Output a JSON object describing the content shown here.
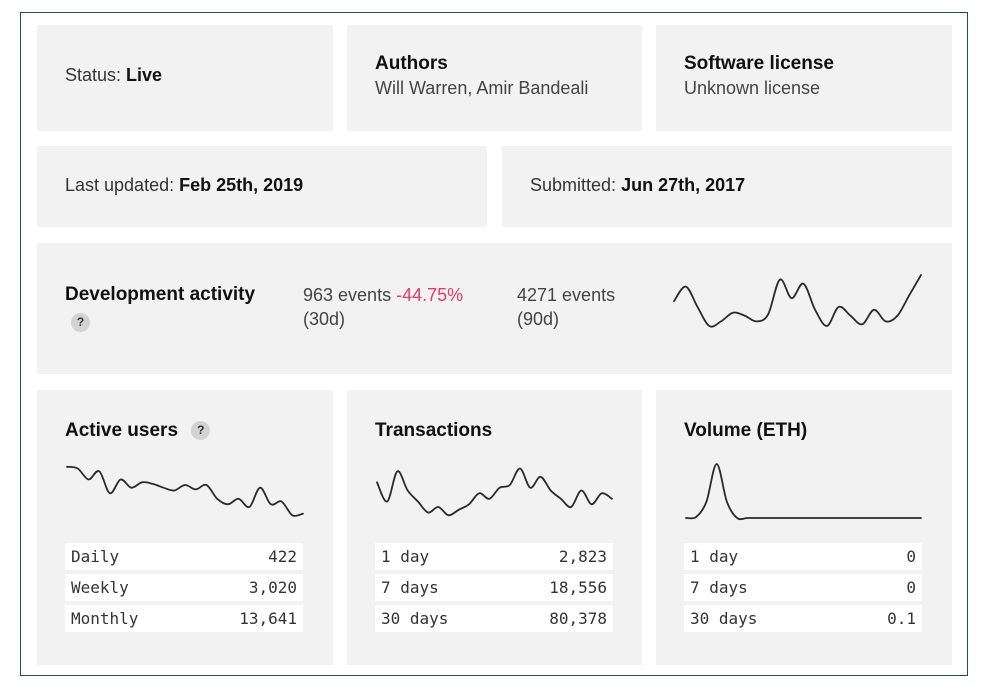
{
  "status": {
    "label": "Status:",
    "value": "Live"
  },
  "authors": {
    "title": "Authors",
    "value": "Will Warren, Amir Bandeali"
  },
  "license": {
    "title": "Software license",
    "value": "Unknown license"
  },
  "last_updated": {
    "label": "Last updated:",
    "value": "Feb 25th, 2019"
  },
  "submitted": {
    "label": "Submitted:",
    "value": "Jun 27th, 2017"
  },
  "dev_activity": {
    "title": "Development activity",
    "help_icon": "?",
    "events_30d": "963 events",
    "change_30d": "-44.75%",
    "period_30d": "(30d)",
    "events_90d": "4271 events",
    "period_90d": "(90d)",
    "sparkline": [
      0.55,
      0.8,
      0.45,
      0.12,
      0.2,
      0.35,
      0.3,
      0.2,
      0.32,
      0.92,
      0.6,
      0.85,
      0.4,
      0.12,
      0.45,
      0.3,
      0.15,
      0.4,
      0.2,
      0.3,
      0.65,
      1.0
    ]
  },
  "active_users": {
    "title": "Active users",
    "help_icon": "?",
    "sparkline": [
      0.93,
      0.9,
      0.7,
      0.85,
      0.45,
      0.7,
      0.55,
      0.65,
      0.62,
      0.55,
      0.5,
      0.6,
      0.52,
      0.6,
      0.35,
      0.25,
      0.35,
      0.2,
      0.55,
      0.25,
      0.3,
      0.05,
      0.08
    ],
    "rows": [
      {
        "label": "Daily",
        "value": "422"
      },
      {
        "label": "Weekly",
        "value": "3,020"
      },
      {
        "label": "Monthly",
        "value": "13,641"
      }
    ]
  },
  "transactions": {
    "title": "Transactions",
    "sparkline": [
      0.65,
      0.3,
      0.85,
      0.5,
      0.3,
      0.1,
      0.2,
      0.05,
      0.15,
      0.25,
      0.45,
      0.35,
      0.55,
      0.6,
      0.9,
      0.55,
      0.75,
      0.5,
      0.35,
      0.2,
      0.5,
      0.25,
      0.45,
      0.35
    ],
    "rows": [
      {
        "label": "1 day",
        "value": "2,823"
      },
      {
        "label": "7 days",
        "value": "18,556"
      },
      {
        "label": "30 days",
        "value": "80,378"
      }
    ]
  },
  "volume": {
    "title": "Volume (ETH)",
    "sparkline": [
      0.0,
      0.02,
      0.3,
      1.0,
      0.3,
      0.0,
      0.0,
      0.0,
      0.0,
      0.0,
      0.0,
      0.0,
      0.0,
      0.0,
      0.0,
      0.0,
      0.0,
      0.0,
      0.0,
      0.0,
      0.0,
      0.0,
      0.0,
      0.0
    ],
    "rows": [
      {
        "label": "1 day",
        "value": "0"
      },
      {
        "label": "7 days",
        "value": "0"
      },
      {
        "label": "30 days",
        "value": "0.1"
      }
    ]
  }
}
